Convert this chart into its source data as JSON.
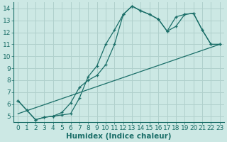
{
  "title": "",
  "xlabel": "Humidex (Indice chaleur)",
  "bg_color": "#cce8e4",
  "grid_color": "#b0d0cc",
  "line_color": "#1a6e68",
  "xlim": [
    -0.5,
    23.5
  ],
  "ylim": [
    4.5,
    14.5
  ],
  "xticks": [
    0,
    1,
    2,
    3,
    4,
    5,
    6,
    7,
    8,
    9,
    10,
    11,
    12,
    13,
    14,
    15,
    16,
    17,
    18,
    19,
    20,
    21,
    22,
    23
  ],
  "yticks": [
    5,
    6,
    7,
    8,
    9,
    10,
    11,
    12,
    13,
    14
  ],
  "line1_x": [
    0,
    1,
    2,
    3,
    4,
    5,
    6,
    7,
    8,
    9,
    10,
    11,
    12,
    13,
    14,
    15,
    16,
    17,
    18,
    19,
    20,
    21,
    22,
    23
  ],
  "line1_y": [
    6.3,
    5.5,
    4.7,
    4.9,
    5.0,
    5.1,
    5.2,
    6.5,
    8.3,
    9.2,
    11.0,
    12.2,
    13.5,
    14.2,
    13.8,
    13.5,
    13.1,
    12.1,
    13.3,
    13.5,
    13.6,
    12.2,
    11.0,
    11.0
  ],
  "line2_x": [
    0,
    1,
    2,
    3,
    4,
    5,
    6,
    7,
    8,
    9,
    10,
    11,
    12,
    13,
    14,
    15,
    16,
    17,
    18,
    19,
    20,
    21,
    22,
    23
  ],
  "line2_y": [
    6.3,
    5.5,
    4.7,
    4.9,
    5.0,
    5.3,
    6.1,
    7.4,
    8.0,
    8.4,
    9.3,
    11.0,
    13.5,
    14.2,
    13.8,
    13.5,
    13.1,
    12.1,
    12.5,
    13.5,
    13.6,
    12.2,
    11.0,
    11.0
  ],
  "line3_x": [
    0,
    23
  ],
  "line3_y": [
    5.2,
    11.0
  ],
  "tick_fontsize": 6.5,
  "xlabel_fontsize": 7.5
}
